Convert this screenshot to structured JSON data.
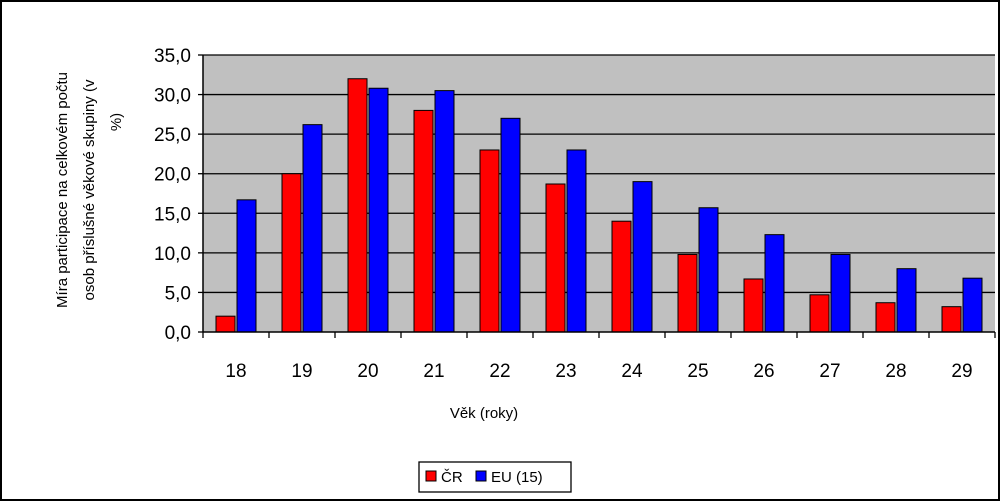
{
  "chart_data": {
    "type": "bar",
    "title": "",
    "xlabel": "Věk (roky)",
    "ylabel": "Míra participace na celkovém počtu osob příslušné věkové skupiny (v %)",
    "ylabel_lines": [
      "Míra participace na celkovém počtu",
      "osob příslušné věkové skupiny (v",
      "%)"
    ],
    "ylim": [
      0,
      35
    ],
    "yticks": [
      "35,0",
      "30,0",
      "25,0",
      "20,0",
      "15,0",
      "10,0",
      "5,0",
      "0,0"
    ],
    "ytick_values": [
      35,
      30,
      25,
      20,
      15,
      10,
      5,
      0
    ],
    "categories": [
      "18",
      "19",
      "20",
      "21",
      "22",
      "23",
      "24",
      "25",
      "26",
      "27",
      "28",
      "29"
    ],
    "grid": true,
    "legend_position": "bottom",
    "series": [
      {
        "name": "ČR",
        "color": "#ff0000",
        "values": [
          2.0,
          20.0,
          32.0,
          28.0,
          23.0,
          18.7,
          14.0,
          9.8,
          6.7,
          4.7,
          3.7,
          3.2
        ]
      },
      {
        "name": "EU (15)",
        "color": "#0000ff",
        "values": [
          16.7,
          26.2,
          30.8,
          30.5,
          27.0,
          23.0,
          19.0,
          15.7,
          12.3,
          9.8,
          8.0,
          6.8
        ]
      }
    ],
    "plot_background": "#c0c0c0"
  }
}
